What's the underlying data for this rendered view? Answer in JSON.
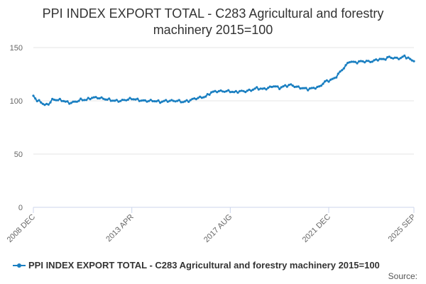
{
  "colors": {
    "series": "#1a7fc1",
    "grid": "#e6e6e6",
    "axis": "#ccd6eb",
    "text": "#666666"
  },
  "source_label": "Source:",
  "chart_data": {
    "type": "line",
    "title": "PPI INDEX EXPORT TOTAL - C283 Agricultural and forestry machinery 2015=100",
    "title_lines": [
      "PPI INDEX EXPORT TOTAL - C283 Agricultural and forestry",
      "machinery 2015=100"
    ],
    "xlabel": "",
    "ylabel": "",
    "ylim": [
      0,
      150
    ],
    "yticks": [
      0,
      50,
      100,
      150
    ],
    "grid": true,
    "legend": "bottom",
    "x_start": "2008 DEC",
    "x_end": "2025 SEP",
    "xticks": [
      "2008 DEC",
      "2013 APR",
      "2017 AUG",
      "2021 DEC",
      "2025 SEP"
    ],
    "series": [
      {
        "name": "PPI INDEX EXPORT TOTAL - C283 Agricultural and forestry machinery 2015=100",
        "anchors": [
          [
            "2008 DEC",
            105
          ],
          [
            "2009 FEB",
            100
          ],
          [
            "2009 APR",
            99
          ],
          [
            "2009 JUN",
            96
          ],
          [
            "2009 AUG",
            97
          ],
          [
            "2009 OCT",
            101
          ],
          [
            "2010 JAN",
            101
          ],
          [
            "2010 APR",
            100
          ],
          [
            "2010 JUL",
            98
          ],
          [
            "2010 OCT",
            99
          ],
          [
            "2011 JAN",
            101
          ],
          [
            "2011 APR",
            101
          ],
          [
            "2011 JUL",
            103
          ],
          [
            "2011 OCT",
            103
          ],
          [
            "2012 JAN",
            102
          ],
          [
            "2012 APR",
            101
          ],
          [
            "2012 JUL",
            100
          ],
          [
            "2012 OCT",
            100
          ],
          [
            "2013 JAN",
            101
          ],
          [
            "2013 APR",
            102
          ],
          [
            "2013 JUL",
            101
          ],
          [
            "2013 OCT",
            100
          ],
          [
            "2014 JAN",
            100
          ],
          [
            "2014 APR",
            100
          ],
          [
            "2014 JUL",
            99
          ],
          [
            "2014 OCT",
            100
          ],
          [
            "2015 JAN",
            100
          ],
          [
            "2015 APR",
            100
          ],
          [
            "2015 JUL",
            99
          ],
          [
            "2015 OCT",
            100
          ],
          [
            "2016 JAN",
            102
          ],
          [
            "2016 APR",
            103
          ],
          [
            "2016 JUL",
            104
          ],
          [
            "2016 OCT",
            108
          ],
          [
            "2017 JAN",
            109
          ],
          [
            "2017 APR",
            109
          ],
          [
            "2017 AUG",
            109
          ],
          [
            "2017 OCT",
            108
          ],
          [
            "2018 JAN",
            109
          ],
          [
            "2018 APR",
            109
          ],
          [
            "2018 JUL",
            110
          ],
          [
            "2018 OCT",
            112
          ],
          [
            "2019 JAN",
            111
          ],
          [
            "2019 APR",
            112
          ],
          [
            "2019 JUL",
            114
          ],
          [
            "2019 OCT",
            112
          ],
          [
            "2020 JAN",
            114
          ],
          [
            "2020 APR",
            115
          ],
          [
            "2020 JUL",
            113
          ],
          [
            "2020 OCT",
            112
          ],
          [
            "2021 JAN",
            111
          ],
          [
            "2021 APR",
            112
          ],
          [
            "2021 JUL",
            113
          ],
          [
            "2021 OCT",
            118
          ],
          [
            "2021 DEC",
            119
          ],
          [
            "2022 MAR",
            121
          ],
          [
            "2022 JUN",
            127
          ],
          [
            "2022 SEP",
            133
          ],
          [
            "2022 NOV",
            137
          ],
          [
            "2023 FEB",
            136
          ],
          [
            "2023 MAY",
            137
          ],
          [
            "2023 AUG",
            137
          ],
          [
            "2023 NOV",
            137
          ],
          [
            "2024 FEB",
            139
          ],
          [
            "2024 MAY",
            139
          ],
          [
            "2024 AUG",
            141
          ],
          [
            "2024 NOV",
            140
          ],
          [
            "2025 FEB",
            140
          ],
          [
            "2025 APR",
            142
          ],
          [
            "2025 JUN",
            140
          ],
          [
            "2025 AUG",
            138
          ],
          [
            "2025 SEP",
            138
          ]
        ]
      }
    ]
  }
}
